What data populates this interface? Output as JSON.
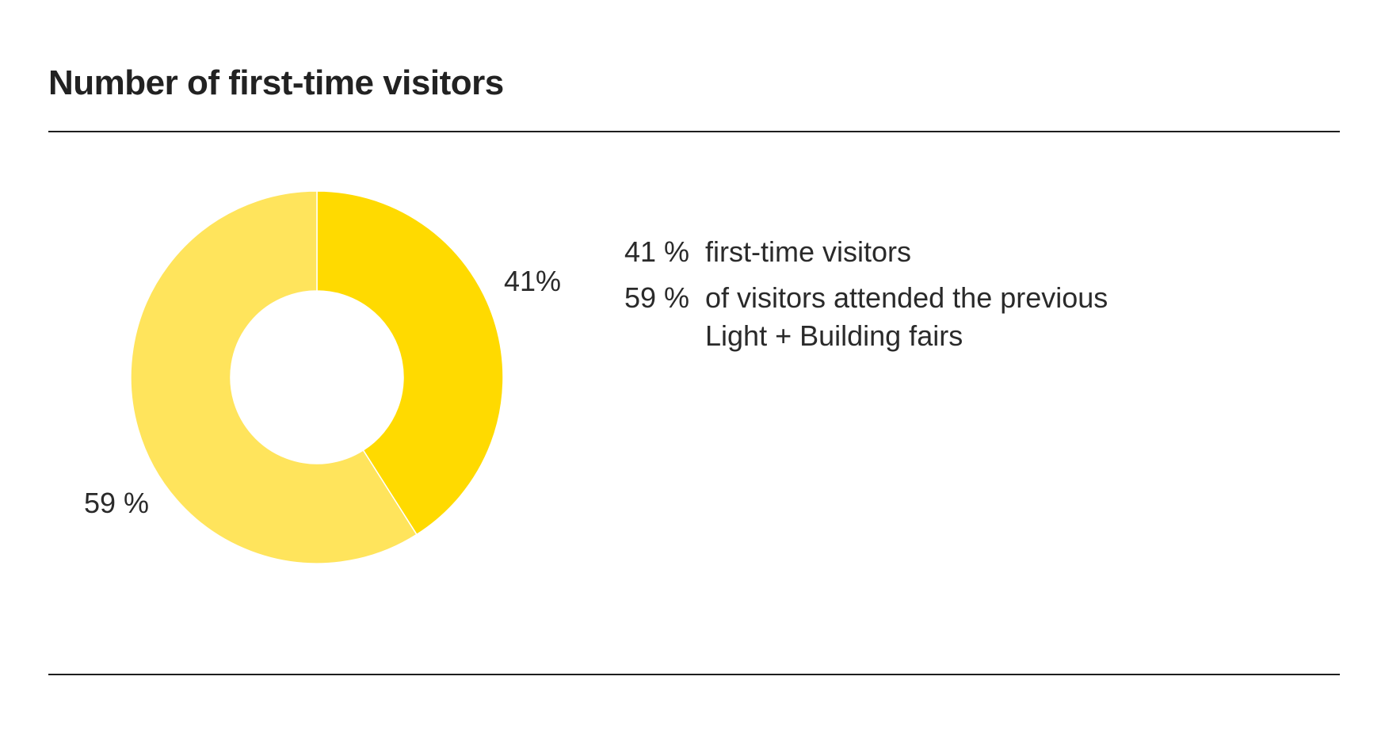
{
  "chart_data": {
    "type": "pie",
    "title": "Number of first-time visitors",
    "slices": [
      {
        "value": 41,
        "label": "41%",
        "color": "#FFDA00"
      },
      {
        "value": 59,
        "label": "59 %",
        "color": "#FFE45C"
      }
    ],
    "legend": [
      {
        "pct": "41 %",
        "text": "first-time visitors"
      },
      {
        "pct": "59 %",
        "text": "of visitors attended the previous Light + Building fairs"
      }
    ]
  }
}
